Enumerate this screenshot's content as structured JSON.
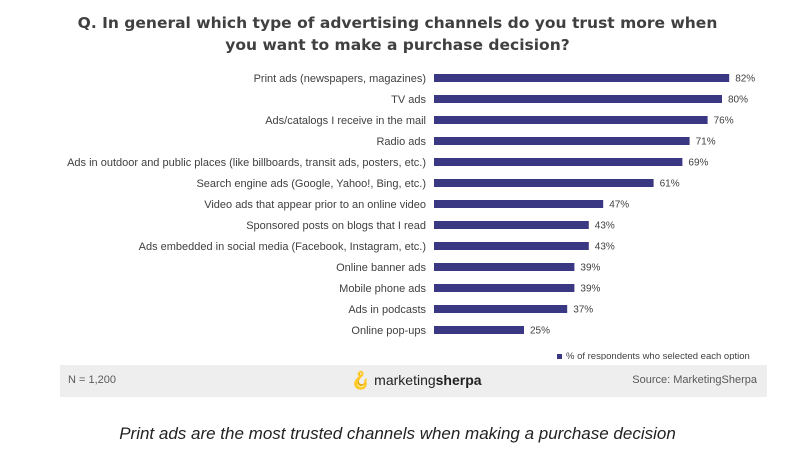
{
  "title_line1": "Q. In general which type of advertising channels do you trust more when",
  "title_line2": "you want to make a purchase decision?",
  "chart_data": {
    "type": "bar",
    "orientation": "horizontal",
    "categories": [
      "Print ads (newspapers, magazines)",
      "TV ads",
      "Ads/catalogs I receive in the mail",
      "Radio ads",
      "Ads in outdoor and public places (like billboards, transit ads, posters, etc.)",
      "Search engine ads (Google, Yahoo!, Bing, etc.)",
      "Video ads that appear prior to an online video",
      "Sponsored posts on blogs that I read",
      "Ads embedded in social media (Facebook, Instagram, etc.)",
      "Online banner ads",
      "Mobile phone ads",
      "Ads in podcasts",
      "Online pop-ups"
    ],
    "values": [
      82,
      80,
      76,
      71,
      69,
      61,
      47,
      43,
      43,
      39,
      39,
      37,
      25
    ],
    "value_labels": [
      "82%",
      "80%",
      "76%",
      "71%",
      "69%",
      "61%",
      "47%",
      "43%",
      "43%",
      "39%",
      "39%",
      "37%",
      "25%"
    ],
    "legend": {
      "label": "% of respondents who selected each option",
      "placement": "bottom-right"
    },
    "bar_color": "#3b3883",
    "grid": false,
    "xlim": [
      0,
      100
    ]
  },
  "footer": {
    "n_label": "N = 1,200",
    "logo_regular": "marketing",
    "logo_bold": "sherpa",
    "source": "Source: MarketingSherpa"
  },
  "caption": "Print ads are the most trusted channels when making a purchase decision"
}
